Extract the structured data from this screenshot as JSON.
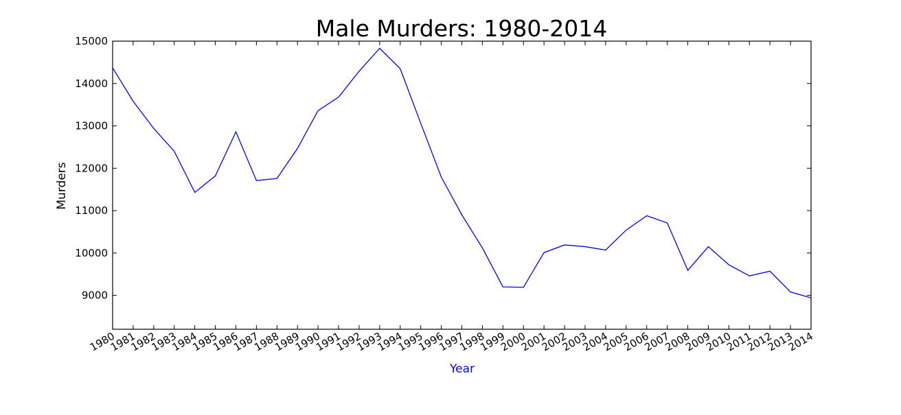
{
  "chart_data": {
    "type": "line",
    "title": "Male Murders: 1980-2014",
    "xlabel": "Year",
    "ylabel": "Murders",
    "ylim": [
      8200,
      15000
    ],
    "yticks": [
      9000,
      10000,
      11000,
      12000,
      13000,
      14000,
      15000
    ],
    "grid": false,
    "legend": "none",
    "colors": {
      "line": "#0000ff",
      "xlabel": "#0000ff",
      "ylabel": "#000000",
      "frame": "#000000"
    },
    "x": [
      "1980",
      "1981",
      "1982",
      "1983",
      "1984",
      "1985",
      "1986",
      "1987",
      "1988",
      "1989",
      "1990",
      "1991",
      "1992",
      "1993",
      "1994",
      "1995",
      "1996",
      "1997",
      "1998",
      "1999",
      "2000",
      "2001",
      "2002",
      "2003",
      "2004",
      "2005",
      "2006",
      "2007",
      "2008",
      "2009",
      "2010",
      "2011",
      "2012",
      "2013",
      "2014"
    ],
    "series": [
      {
        "values": [
          14370,
          13580,
          12940,
          12400,
          11430,
          11820,
          12860,
          11710,
          11760,
          12470,
          13360,
          13680,
          14290,
          14830,
          14350,
          13060,
          11790,
          10900,
          10120,
          9200,
          9190,
          10010,
          10190,
          10150,
          10070,
          10540,
          10880,
          10710,
          9590,
          10150,
          9720,
          9460,
          9570,
          9080,
          8940
        ]
      }
    ]
  }
}
